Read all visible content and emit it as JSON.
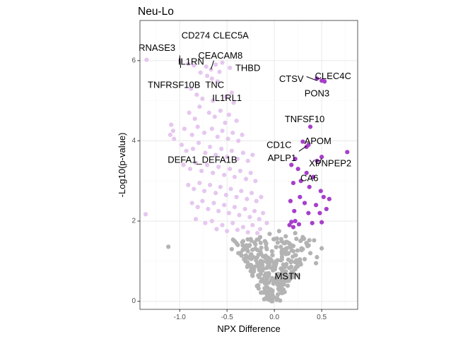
{
  "chart_data": {
    "type": "scatter",
    "title": "Neu-Lo",
    "xlabel": "NPX Difference",
    "ylabel": "-Log10(p-value)",
    "xlim": [
      -1.42,
      0.88
    ],
    "ylim": [
      -0.2,
      7.0
    ],
    "x_ticks": [
      -1.0,
      -0.5,
      0.0,
      0.5
    ],
    "x_tick_labels": [
      "-1.0",
      "-0.5",
      "0.0",
      "0.5"
    ],
    "y_ticks": [
      0,
      2,
      4,
      6
    ],
    "y_tick_labels": [
      "0",
      "2",
      "4",
      "6"
    ],
    "grid": true,
    "legend": "none",
    "colors": {
      "significant_down": "#e5c7ef",
      "significant_up": "#a63fca",
      "not_significant": "#b3b3b3",
      "panel_background": "#ffffff",
      "panel_border": "#333333",
      "grid_major": "#ebebeb",
      "grid_minor": "#f5f5f5"
    },
    "label_color": "#000000",
    "series": [
      {
        "group": "significant_down",
        "points": [
          [
            -0.99,
            6.0
          ],
          [
            -0.91,
            5.92
          ],
          [
            -0.85,
            5.88
          ],
          [
            -0.78,
            5.7
          ],
          [
            -0.72,
            5.85
          ],
          [
            -0.67,
            5.78
          ],
          [
            -0.62,
            5.9
          ],
          [
            -0.58,
            5.72
          ],
          [
            -0.55,
            5.95
          ],
          [
            -0.47,
            5.82
          ],
          [
            -0.71,
            5.62
          ],
          [
            -0.66,
            5.55
          ],
          [
            -0.6,
            5.48
          ],
          [
            -1.35,
            6.02
          ],
          [
            -0.65,
            5.0
          ],
          [
            -0.88,
            5.3
          ],
          [
            -0.82,
            5.15
          ],
          [
            -0.76,
            5.05
          ],
          [
            -0.51,
            5.1
          ],
          [
            -0.45,
            5.2
          ],
          [
            -0.43,
            4.95
          ],
          [
            -0.9,
            4.7
          ],
          [
            -0.84,
            4.55
          ],
          [
            -0.79,
            4.85
          ],
          [
            -0.69,
            4.7
          ],
          [
            -0.63,
            4.6
          ],
          [
            -0.57,
            4.75
          ],
          [
            -0.52,
            4.45
          ],
          [
            -0.48,
            4.65
          ],
          [
            -0.4,
            4.5
          ],
          [
            -1.09,
            4.4
          ],
          [
            -1.07,
            4.25
          ],
          [
            -1.1,
            4.15
          ],
          [
            -1.06,
            4.05
          ],
          [
            -0.95,
            4.3
          ],
          [
            -0.87,
            4.15
          ],
          [
            -0.81,
            4.35
          ],
          [
            -0.74,
            4.2
          ],
          [
            -0.66,
            4.3
          ],
          [
            -0.6,
            4.1
          ],
          [
            -0.55,
            4.25
          ],
          [
            -0.49,
            4.05
          ],
          [
            -0.44,
            4.2
          ],
          [
            -0.38,
            4.0
          ],
          [
            -0.34,
            4.15
          ],
          [
            -0.98,
            3.9
          ],
          [
            -0.93,
            3.75
          ],
          [
            -0.86,
            3.8
          ],
          [
            -0.8,
            3.95
          ],
          [
            -0.73,
            3.7
          ],
          [
            -0.68,
            3.85
          ],
          [
            -0.62,
            3.65
          ],
          [
            -0.56,
            3.8
          ],
          [
            -0.5,
            3.6
          ],
          [
            -0.45,
            3.75
          ],
          [
            -0.39,
            3.55
          ],
          [
            -0.33,
            3.7
          ],
          [
            -0.28,
            3.5
          ],
          [
            -0.23,
            3.65
          ],
          [
            -0.96,
            3.4
          ],
          [
            -0.89,
            3.3
          ],
          [
            -0.83,
            3.45
          ],
          [
            -0.77,
            3.25
          ],
          [
            -0.71,
            3.4
          ],
          [
            -0.65,
            3.2
          ],
          [
            -0.59,
            3.35
          ],
          [
            -0.53,
            3.15
          ],
          [
            -0.47,
            3.3
          ],
          [
            -0.42,
            3.1
          ],
          [
            -0.36,
            3.25
          ],
          [
            -0.3,
            3.05
          ],
          [
            -0.25,
            3.2
          ],
          [
            -0.2,
            3.0
          ],
          [
            -0.91,
            2.9
          ],
          [
            -0.85,
            2.8
          ],
          [
            -0.79,
            2.95
          ],
          [
            -0.74,
            2.75
          ],
          [
            -0.68,
            2.9
          ],
          [
            -0.62,
            2.7
          ],
          [
            -0.57,
            2.85
          ],
          [
            -0.51,
            2.65
          ],
          [
            -0.46,
            2.8
          ],
          [
            -0.4,
            2.6
          ],
          [
            -0.35,
            2.75
          ],
          [
            -0.29,
            2.55
          ],
          [
            -0.24,
            2.7
          ],
          [
            -0.19,
            2.5
          ],
          [
            -0.14,
            2.6
          ],
          [
            -0.87,
            2.45
          ],
          [
            -0.81,
            2.35
          ],
          [
            -0.76,
            2.5
          ],
          [
            -0.7,
            2.3
          ],
          [
            -0.64,
            2.45
          ],
          [
            -0.59,
            2.25
          ],
          [
            -0.53,
            2.4
          ],
          [
            -0.48,
            2.2
          ],
          [
            -0.42,
            2.35
          ],
          [
            -0.37,
            2.15
          ],
          [
            -0.31,
            2.3
          ],
          [
            -0.26,
            2.1
          ],
          [
            -0.21,
            2.25
          ],
          [
            -0.16,
            2.05
          ],
          [
            -0.12,
            2.2
          ],
          [
            -0.83,
            2.05
          ],
          [
            -0.73,
            1.95
          ],
          [
            -0.66,
            2.0
          ],
          [
            -0.55,
            1.9
          ],
          [
            -0.44,
            1.95
          ],
          [
            -0.33,
            1.85
          ],
          [
            -0.23,
            1.9
          ],
          [
            -0.15,
            1.8
          ],
          [
            -0.08,
            1.95
          ],
          [
            -1.36,
            2.17
          ],
          [
            -0.61,
            1.8
          ],
          [
            -0.5,
            1.75
          ],
          [
            -0.39,
            1.78
          ],
          [
            -0.28,
            1.72
          ],
          [
            -0.18,
            1.7
          ]
        ]
      },
      {
        "group": "significant_up",
        "points": [
          [
            0.45,
            5.55
          ],
          [
            0.5,
            5.5
          ],
          [
            0.53,
            5.48
          ],
          [
            0.38,
            4.35
          ],
          [
            0.3,
            3.98
          ],
          [
            0.36,
            3.9
          ],
          [
            0.34,
            3.85
          ],
          [
            0.77,
            3.72
          ],
          [
            0.5,
            3.6
          ],
          [
            0.45,
            3.5
          ],
          [
            0.22,
            3.55
          ],
          [
            0.18,
            3.4
          ],
          [
            0.25,
            3.3
          ],
          [
            0.34,
            3.2
          ],
          [
            0.41,
            3.1
          ],
          [
            0.28,
            3.0
          ],
          [
            0.2,
            2.95
          ],
          [
            0.37,
            2.85
          ],
          [
            0.49,
            2.75
          ],
          [
            0.52,
            2.6
          ],
          [
            0.58,
            2.55
          ],
          [
            0.27,
            2.6
          ],
          [
            0.32,
            2.45
          ],
          [
            0.44,
            2.4
          ],
          [
            0.17,
            2.5
          ],
          [
            0.21,
            2.25
          ],
          [
            0.36,
            2.2
          ],
          [
            0.48,
            2.2
          ],
          [
            0.55,
            2.3
          ],
          [
            0.22,
            2.0
          ],
          [
            0.18,
            1.98
          ],
          [
            0.16,
            1.9
          ],
          [
            0.26,
            1.92
          ],
          [
            0.4,
            1.95
          ],
          [
            0.5,
            1.97
          ],
          [
            0.2,
            1.85
          ]
        ]
      },
      {
        "group": "not_significant",
        "points": [
          [
            -1.12,
            1.36
          ],
          [
            0.5,
            1.32
          ],
          [
            0.42,
            1.52
          ],
          [
            0.3,
            1.6
          ],
          [
            0.22,
            1.7
          ],
          [
            0.12,
            1.62
          ],
          [
            0.05,
            1.75
          ],
          [
            -0.05,
            1.68
          ],
          [
            -0.15,
            1.6
          ],
          [
            -0.25,
            1.55
          ],
          [
            -0.33,
            1.5
          ],
          [
            -0.4,
            1.45
          ],
          [
            -0.3,
            1.35
          ],
          [
            -0.2,
            1.42
          ],
          [
            -0.1,
            1.5
          ],
          [
            0.0,
            1.55
          ],
          [
            0.1,
            1.45
          ],
          [
            0.2,
            1.38
          ],
          [
            0.3,
            1.3
          ],
          [
            0.38,
            1.2
          ],
          [
            0.45,
            1.1
          ],
          [
            -0.45,
            1.3
          ],
          [
            -0.38,
            1.2
          ],
          [
            -0.28,
            1.25
          ],
          [
            -0.18,
            1.28
          ],
          [
            -0.08,
            1.3
          ],
          [
            0.02,
            1.35
          ],
          [
            0.12,
            1.25
          ],
          [
            0.22,
            1.15
          ],
          [
            0.32,
            1.05
          ],
          [
            -0.32,
            1.05
          ],
          [
            -0.22,
            1.1
          ],
          [
            -0.12,
            1.12
          ],
          [
            -0.02,
            1.15
          ],
          [
            0.08,
            1.1
          ],
          [
            0.18,
            1.0
          ],
          [
            0.28,
            0.92
          ],
          [
            -0.28,
            0.9
          ],
          [
            -0.18,
            0.95
          ],
          [
            -0.08,
            0.98
          ],
          [
            0.02,
            0.95
          ],
          [
            0.12,
            0.88
          ],
          [
            0.22,
            0.8
          ],
          [
            -0.22,
            0.75
          ],
          [
            -0.12,
            0.8
          ],
          [
            -0.02,
            0.82
          ],
          [
            0.08,
            0.78
          ],
          [
            0.18,
            0.7
          ],
          [
            -0.16,
            0.6
          ],
          [
            -0.06,
            0.65
          ],
          [
            0.04,
            0.62
          ],
          [
            0.14,
            0.55
          ],
          [
            -0.1,
            0.45
          ],
          [
            0.0,
            0.48
          ],
          [
            0.1,
            0.42
          ],
          [
            -0.05,
            0.3
          ],
          [
            0.05,
            0.28
          ],
          [
            -0.02,
            0.15
          ],
          [
            0.03,
            0.08
          ],
          [
            0.25,
            0.65
          ],
          [
            -0.26,
            1.4
          ],
          [
            0.15,
            1.2
          ],
          [
            -0.14,
            1.18
          ],
          [
            0.07,
            1.02
          ],
          [
            -0.06,
            0.7
          ],
          [
            0.2,
            1.25
          ],
          [
            -0.35,
            1.15
          ],
          [
            0.35,
            1.4
          ],
          [
            0.44,
            0.95
          ],
          [
            -0.42,
            1.5
          ]
        ]
      }
    ],
    "annotations": [
      {
        "text": "CD274",
        "x": -0.83,
        "y": 6.63
      },
      {
        "text": "CLEC5A",
        "x": -0.46,
        "y": 6.63
      },
      {
        "text": "RNASE3",
        "x": -1.24,
        "y": 6.32
      },
      {
        "text": "CEACAM8",
        "x": -0.57,
        "y": 6.13
      },
      {
        "text": "IL1RN",
        "x": -0.88,
        "y": 5.98
      },
      {
        "text": "THBD",
        "x": -0.28,
        "y": 5.82
      },
      {
        "text": "CTSV",
        "x": 0.18,
        "y": 5.55
      },
      {
        "text": "CLEC4C",
        "x": 0.62,
        "y": 5.62
      },
      {
        "text": "TNFRSF10B",
        "x": -1.06,
        "y": 5.4
      },
      {
        "text": "TNC",
        "x": -0.63,
        "y": 5.4
      },
      {
        "text": "PON3",
        "x": 0.45,
        "y": 5.19
      },
      {
        "text": "IL1RL1",
        "x": -0.5,
        "y": 5.07
      },
      {
        "text": "TNFSF10",
        "x": 0.32,
        "y": 4.54
      },
      {
        "text": "APOM",
        "x": 0.46,
        "y": 4.0
      },
      {
        "text": "CD1C",
        "x": 0.05,
        "y": 3.9
      },
      {
        "text": "APLP1",
        "x": 0.08,
        "y": 3.58
      },
      {
        "text": "DEFA1_DEFA1B",
        "x": -0.76,
        "y": 3.53
      },
      {
        "text": "XPNPEP2",
        "x": 0.59,
        "y": 3.44
      },
      {
        "text": "CA6",
        "x": 0.37,
        "y": 3.07
      },
      {
        "text": "MSTN",
        "x": 0.14,
        "y": 0.63
      }
    ],
    "connectors": [
      {
        "from": [
          -1.0,
          6.13
        ],
        "to": [
          -0.99,
          5.82
        ]
      },
      {
        "from": [
          -0.64,
          6.0
        ],
        "to": [
          -0.67,
          5.78
        ]
      },
      {
        "from": [
          0.34,
          5.6
        ],
        "to": [
          0.45,
          5.5
        ]
      },
      {
        "from": [
          0.26,
          3.74
        ],
        "to": [
          0.34,
          3.87
        ]
      },
      {
        "from": [
          0.46,
          3.37
        ],
        "to": [
          0.5,
          3.57
        ]
      }
    ]
  }
}
